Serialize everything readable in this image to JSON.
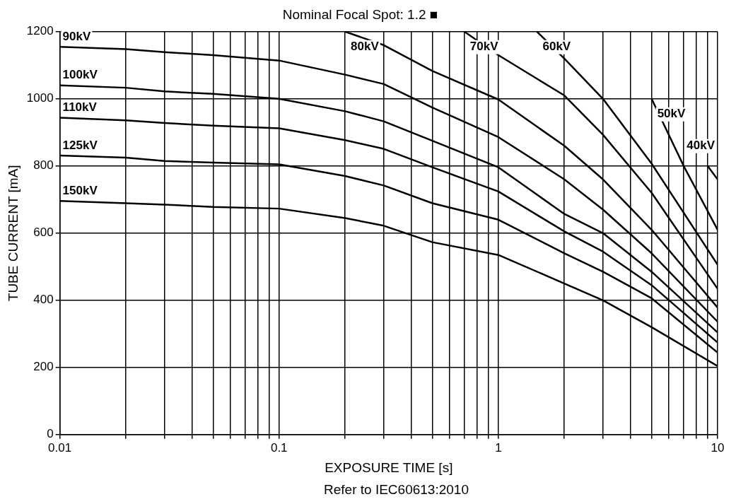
{
  "chart_data": {
    "type": "line",
    "title": "Nominal Focal Spot: 1.2 ■",
    "xlabel": "EXPOSURE TIME [s]",
    "ylabel": "TUBE CURRENT [mA]",
    "annotations": [
      "Refer to IEC60613:2010"
    ],
    "log": "x",
    "grid": true,
    "legend": false,
    "marker": "none",
    "line_style": "solid",
    "xlim": [
      0.01,
      10
    ],
    "ylim": [
      0,
      1200
    ],
    "xticks": [
      0.01,
      {
        "value": 0.02,
        "label": null
      },
      {
        "value": 0.03,
        "label": null
      },
      {
        "value": 0.04,
        "label": null
      },
      {
        "value": 0.05,
        "label": null
      },
      {
        "value": 0.06,
        "label": null
      },
      {
        "value": 0.07,
        "label": null
      },
      {
        "value": 0.08,
        "label": null
      },
      {
        "value": 0.09,
        "label": null
      },
      0.1,
      {
        "value": 0.2,
        "label": null
      },
      {
        "value": 0.3,
        "label": null
      },
      {
        "value": 0.4,
        "label": null
      },
      {
        "value": 0.5,
        "label": null
      },
      {
        "value": 0.6,
        "label": null
      },
      {
        "value": 0.7,
        "label": null
      },
      {
        "value": 0.8,
        "label": null
      },
      {
        "value": 0.9,
        "label": null
      },
      1,
      {
        "value": 2,
        "label": null
      },
      {
        "value": 3,
        "label": null
      },
      {
        "value": 4,
        "label": null
      },
      {
        "value": 5,
        "label": null
      },
      {
        "value": 6,
        "label": null
      },
      {
        "value": 7,
        "label": null
      },
      {
        "value": 8,
        "label": null
      },
      {
        "value": 9,
        "label": null
      },
      10
    ],
    "yticks": [
      0,
      200,
      400,
      600,
      800,
      1000,
      1200
    ],
    "series": [
      {
        "name": "90kV",
        "color": "#000000",
        "x": [
          0.01,
          0.02,
          0.03,
          0.05,
          0.1,
          0.2,
          0.3,
          0.5,
          1,
          2,
          3,
          5,
          10
        ],
        "values": [
          1155,
          1148,
          1139,
          1130,
          1114,
          1072,
          1044,
          974,
          886,
          760,
          670,
          540,
          336
        ]
      },
      {
        "name": "80kV",
        "color": "#000000",
        "x": [
          0.2,
          0.3,
          0.5,
          1,
          2,
          3,
          5,
          10
        ],
        "values": [
          1200,
          1160,
          1083,
          998,
          860,
          760,
          610,
          378
        ]
      },
      {
        "name": "70kV",
        "color": "#000000",
        "x": [
          0.7,
          1,
          2,
          3,
          5,
          10
        ],
        "values": [
          1200,
          1130,
          1010,
          893,
          720,
          434
        ]
      },
      {
        "name": "60kV",
        "color": "#000000",
        "x": [
          1.5,
          2,
          3,
          5,
          10
        ],
        "values": [
          1200,
          1120,
          1000,
          807,
          506
        ]
      },
      {
        "name": "50kV",
        "color": "#000000",
        "x": [
          5,
          7,
          10
        ],
        "values": [
          1000,
          800,
          610
        ]
      },
      {
        "name": "100kV",
        "color": "#000000",
        "x": [
          0.01,
          0.02,
          0.03,
          0.05,
          0.1,
          0.2,
          0.3,
          0.5,
          1,
          2,
          3,
          5,
          10
        ],
        "values": [
          1040,
          1033,
          1022,
          1015,
          1000,
          963,
          933,
          875,
          796,
          657,
          600,
          485,
          304
        ]
      },
      {
        "name": "110kV",
        "color": "#000000",
        "x": [
          0.01,
          0.02,
          0.03,
          0.05,
          0.1,
          0.2,
          0.3,
          0.5,
          1,
          2,
          3,
          5,
          10
        ],
        "values": [
          944,
          936,
          928,
          920,
          912,
          877,
          851,
          796,
          724,
          605,
          545,
          445,
          274
        ]
      },
      {
        "name": "125kV",
        "color": "#000000",
        "x": [
          0.01,
          0.02,
          0.03,
          0.05,
          0.1,
          0.2,
          0.3,
          0.5,
          1,
          2,
          3,
          5,
          10
        ],
        "values": [
          831,
          825,
          815,
          810,
          805,
          770,
          742,
          689,
          640,
          540,
          485,
          406,
          244
        ]
      },
      {
        "name": "150kV",
        "color": "#000000",
        "x": [
          0.01,
          0.02,
          0.03,
          0.05,
          0.1,
          0.2,
          0.3,
          0.5,
          1,
          2,
          3,
          5,
          10
        ],
        "values": [
          696,
          689,
          685,
          678,
          673,
          645,
          622,
          573,
          535,
          450,
          400,
          320,
          204
        ]
      },
      {
        "name": "40kV",
        "color": "#000000",
        "x": [
          9,
          10
        ],
        "values": [
          800,
          760
        ]
      }
    ]
  }
}
